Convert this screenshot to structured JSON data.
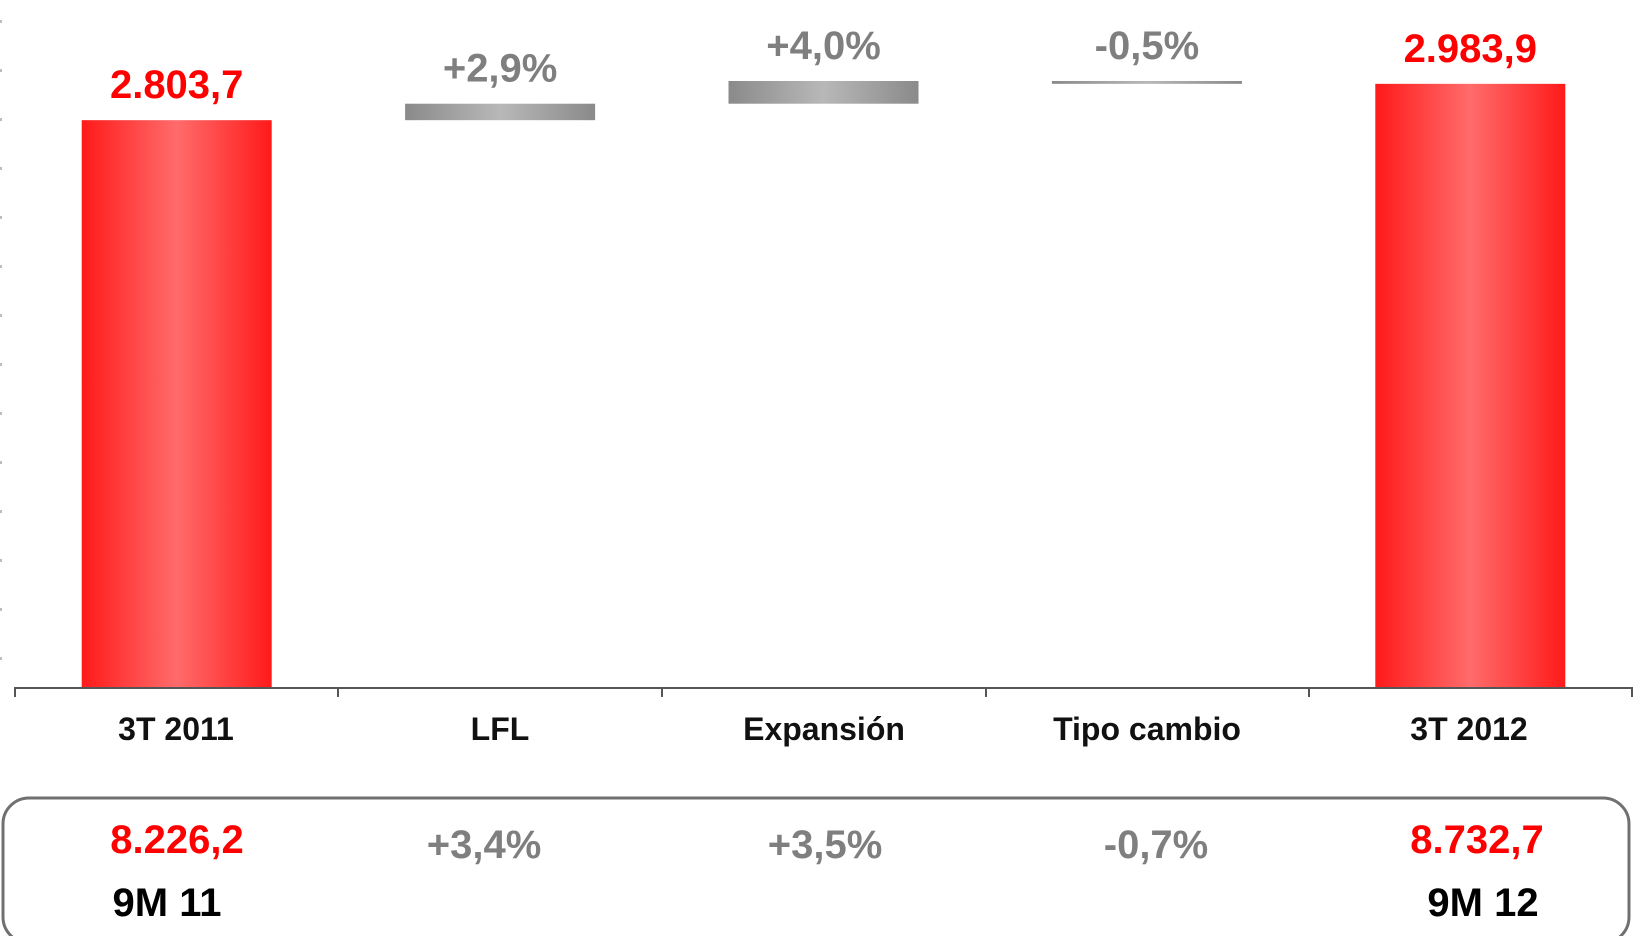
{
  "chart_data": {
    "type": "bar",
    "subtype": "waterfall",
    "categories": [
      "3T 2011",
      "LFL",
      "Expansión",
      "Tipo cambio",
      "3T 2012"
    ],
    "steps": [
      {
        "category": "3T 2011",
        "kind": "total",
        "value": 2803.7,
        "label": "2.803,7"
      },
      {
        "category": "LFL",
        "kind": "change",
        "percent": 2.9,
        "label": "+2,9%"
      },
      {
        "category": "Expansión",
        "kind": "change",
        "percent": 4.0,
        "label": "+4,0%"
      },
      {
        "category": "Tipo cambio",
        "kind": "change",
        "percent": -0.5,
        "label": "-0,5%"
      },
      {
        "category": "3T 2012",
        "kind": "total",
        "value": 2983.9,
        "label": "2.983,9"
      }
    ],
    "summary_row": {
      "values": [
        "8.226,2",
        "+3,4%",
        "+3,5%",
        "-0,7%",
        "8.732,7"
      ],
      "periods": [
        "9M 11",
        "",
        "",
        "",
        "9M 12"
      ]
    },
    "grid": false,
    "legend": "none"
  },
  "colors": {
    "total_bar": "#ff1a1a",
    "total_bar_light": "#ff6b6b",
    "change_bar": "#8a8a8a",
    "change_bar_light": "#b8b8b8",
    "total_label": "#ff0000",
    "change_label": "#7f7f7f",
    "axis": "#555555",
    "box_border": "#707070"
  }
}
